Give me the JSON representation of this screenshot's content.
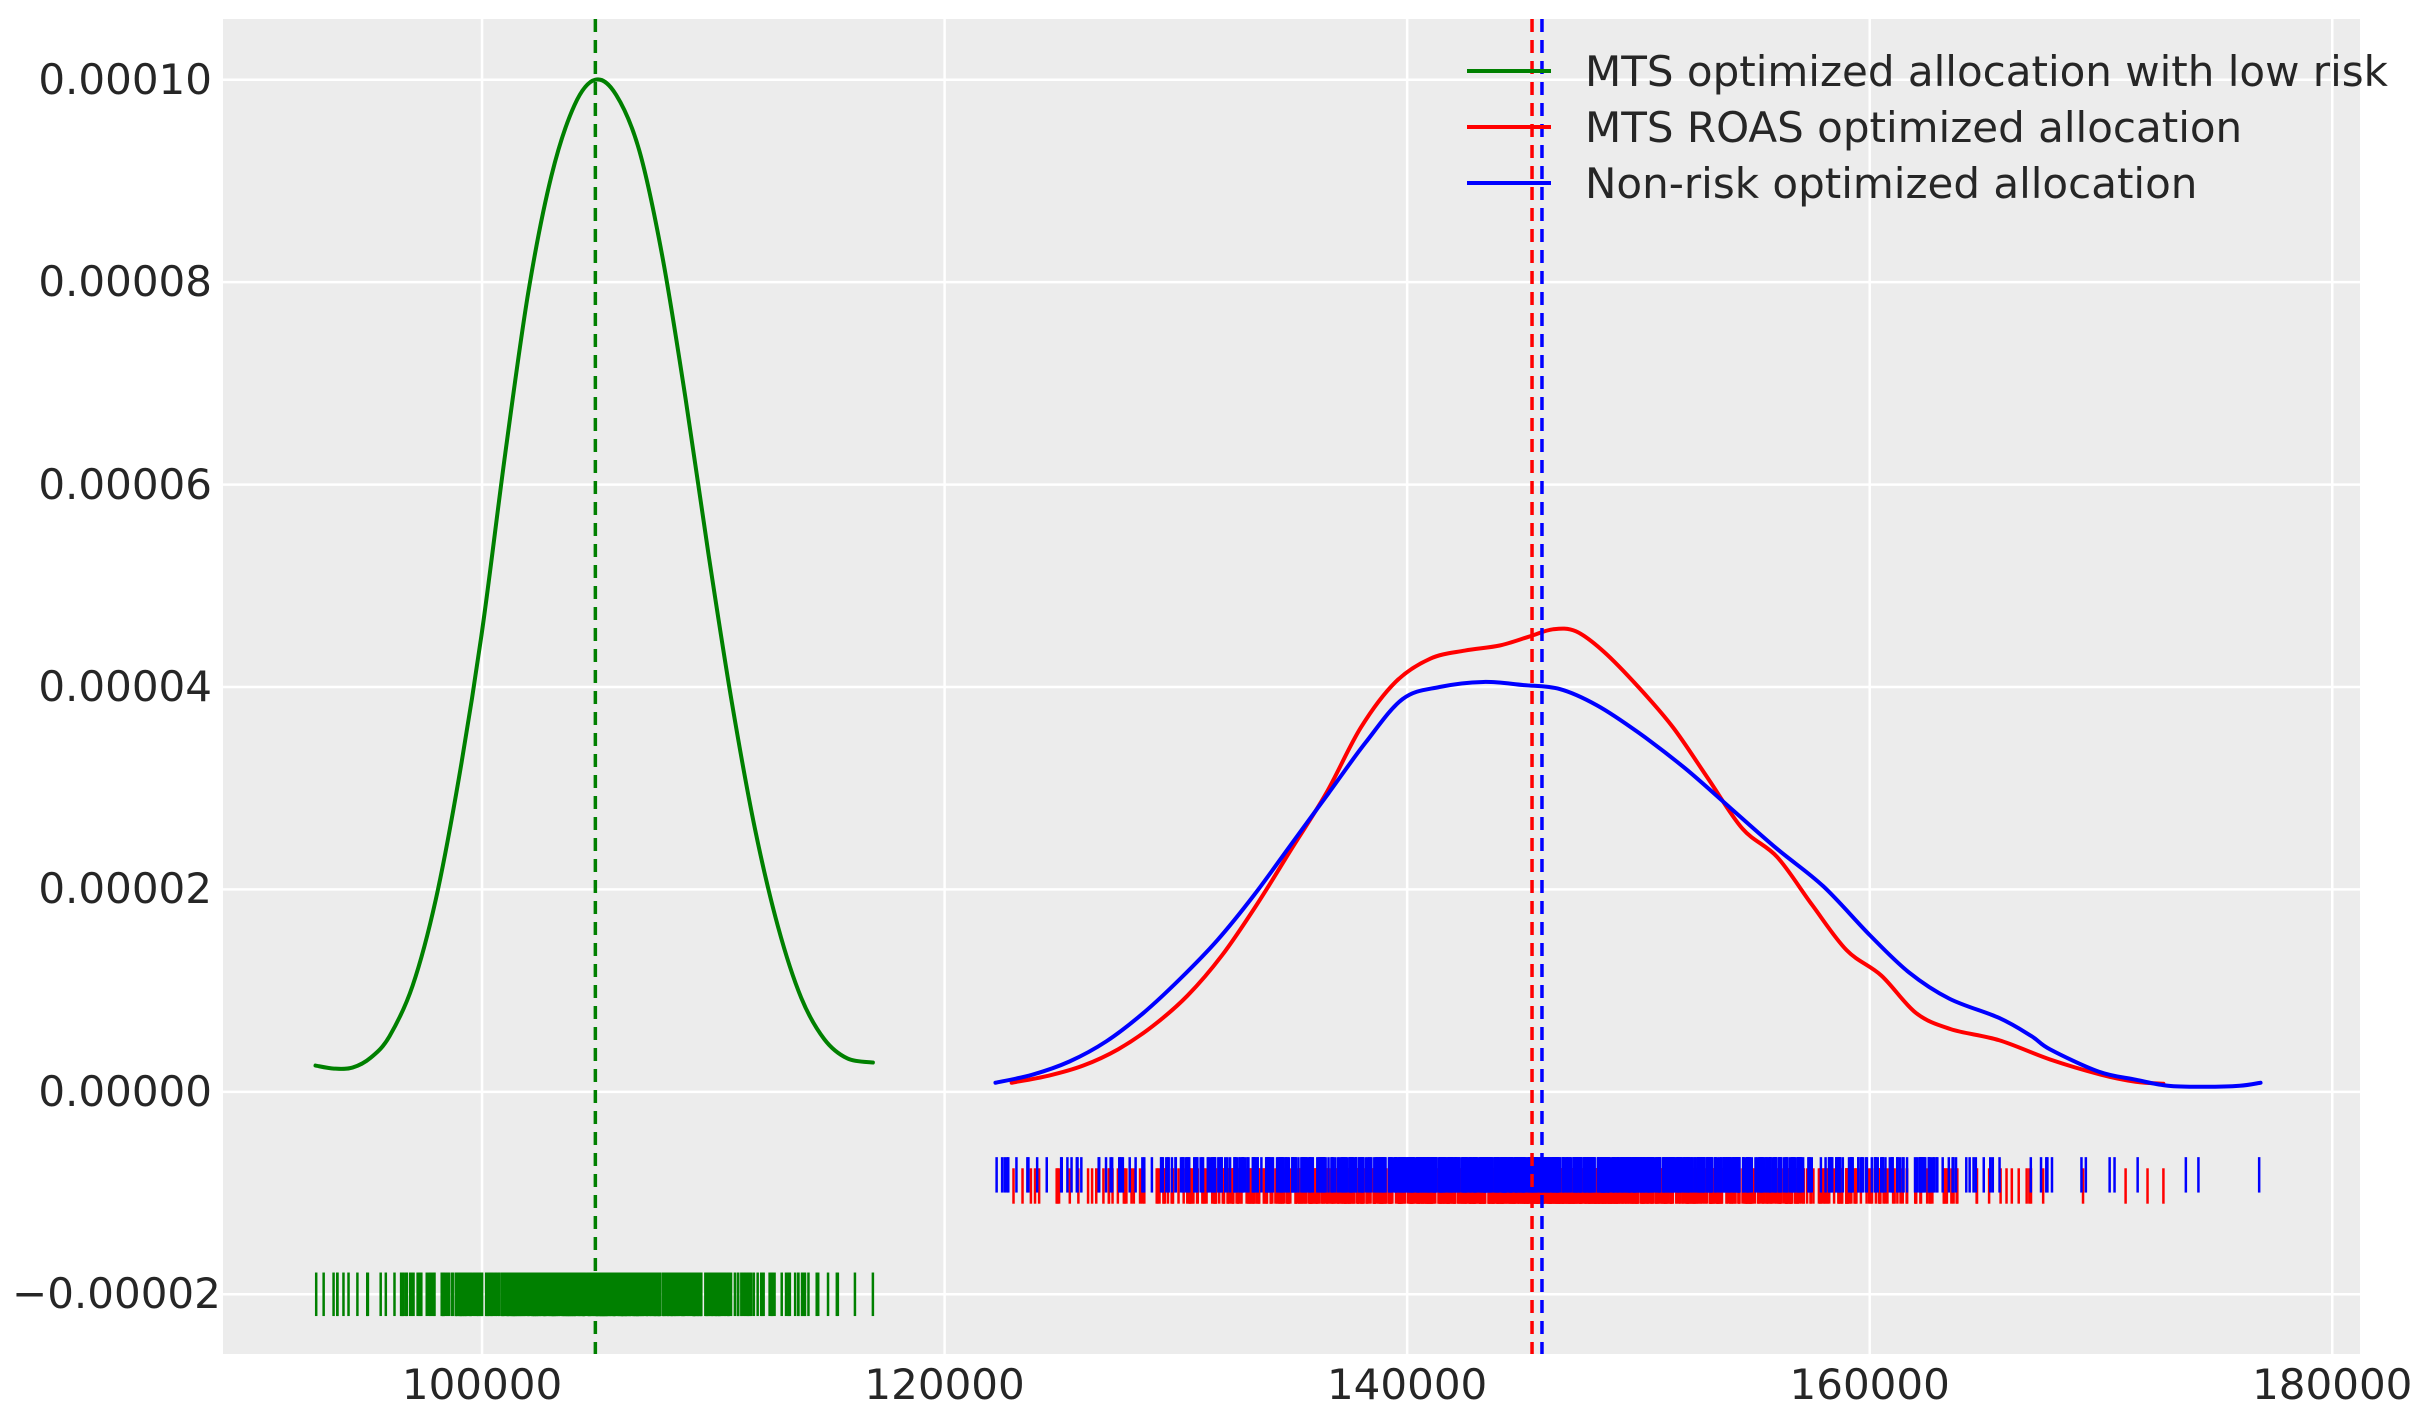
{
  "figure": {
    "background": "#ffffff",
    "plot_background": "#ececec",
    "grid_color": "#ffffff",
    "text_color": "#262626"
  },
  "chart_data": {
    "type": "line",
    "subtype": "kde-distribution-with-rug",
    "title": "",
    "xlabel": "",
    "ylabel": "",
    "axes": {
      "xlim": [
        88800,
        181200
      ],
      "ylim": [
        -2.59e-05,
        0.000106
      ],
      "x_ticks": [
        100000,
        120000,
        140000,
        160000,
        180000
      ],
      "x_tick_labels": [
        "100000",
        "120000",
        "140000",
        "160000",
        "180000"
      ],
      "y_ticks": [
        0.0001,
        8e-05,
        6e-05,
        4e-05,
        2e-05,
        0.0,
        -2e-05
      ],
      "y_tick_labels": [
        "0.00010",
        "0.00008",
        "0.00006",
        "0.00004",
        "0.00002",
        "0.00000",
        "−0.00002"
      ],
      "grid": true,
      "legend_position": "upper right"
    },
    "series": [
      {
        "name": "MTS optimized allocation with low risk",
        "color": "#008000",
        "mean_line": 104900,
        "line_style": "solid",
        "mean_line_style": "dashed",
        "points": [
          [
            92800,
            2.6e-06
          ],
          [
            93600,
            2.3e-06
          ],
          [
            94400,
            2.4e-06
          ],
          [
            95200,
            3.4e-06
          ],
          [
            96000,
            5.5e-06
          ],
          [
            97000,
            1.05e-05
          ],
          [
            98000,
            1.9e-05
          ],
          [
            99000,
            3.1e-05
          ],
          [
            100000,
            4.55e-05
          ],
          [
            101000,
            6.3e-05
          ],
          [
            102000,
            7.9e-05
          ],
          [
            103000,
            9.05e-05
          ],
          [
            104000,
            9.75e-05
          ],
          [
            104900,
            0.0001
          ],
          [
            105800,
            9.85e-05
          ],
          [
            106800,
            9.3e-05
          ],
          [
            107800,
            8.25e-05
          ],
          [
            108800,
            6.85e-05
          ],
          [
            109800,
            5.3e-05
          ],
          [
            110800,
            3.85e-05
          ],
          [
            111800,
            2.6e-05
          ],
          [
            112800,
            1.63e-05
          ],
          [
            113800,
            9.3e-06
          ],
          [
            114800,
            5.2e-06
          ],
          [
            115800,
            3.3e-06
          ],
          [
            116900,
            2.9e-06
          ]
        ]
      },
      {
        "name": "MTS ROAS optimized allocation",
        "color": "#ff0000",
        "mean_line": 145400,
        "line_style": "solid",
        "mean_line_style": "dashed",
        "points": [
          [
            122900,
            9e-07
          ],
          [
            124500,
            1.6e-06
          ],
          [
            126000,
            2.6e-06
          ],
          [
            127500,
            4.2e-06
          ],
          [
            129000,
            6.5e-06
          ],
          [
            130500,
            9.5e-06
          ],
          [
            132000,
            1.35e-05
          ],
          [
            133500,
            1.85e-05
          ],
          [
            135000,
            2.4e-05
          ],
          [
            136500,
            2.95e-05
          ],
          [
            138000,
            3.6e-05
          ],
          [
            139500,
            4.05e-05
          ],
          [
            141000,
            4.28e-05
          ],
          [
            142500,
            4.36e-05
          ],
          [
            144000,
            4.41e-05
          ],
          [
            145300,
            4.5e-05
          ],
          [
            146300,
            4.57e-05
          ],
          [
            147300,
            4.55e-05
          ],
          [
            148500,
            4.35e-05
          ],
          [
            150000,
            4e-05
          ],
          [
            151500,
            3.6e-05
          ],
          [
            153000,
            3.1e-05
          ],
          [
            154500,
            2.6e-05
          ],
          [
            156000,
            2.32e-05
          ],
          [
            157500,
            1.85e-05
          ],
          [
            159000,
            1.4e-05
          ],
          [
            160500,
            1.15e-05
          ],
          [
            162000,
            7.8e-06
          ],
          [
            163500,
            6.2e-06
          ],
          [
            165600,
            5.1e-06
          ],
          [
            167800,
            3.2e-06
          ],
          [
            170000,
            1.7e-06
          ],
          [
            171500,
            1e-06
          ],
          [
            172700,
            8e-07
          ]
        ]
      },
      {
        "name": "Non-risk optimized allocation",
        "color": "#0000ff",
        "mean_line": 145830,
        "line_style": "solid",
        "mean_line_style": "dashed",
        "points": [
          [
            122200,
            9e-07
          ],
          [
            123800,
            1.7e-06
          ],
          [
            125400,
            3e-06
          ],
          [
            127000,
            5e-06
          ],
          [
            128600,
            7.8e-06
          ],
          [
            130200,
            1.12e-05
          ],
          [
            131800,
            1.5e-05
          ],
          [
            133400,
            1.95e-05
          ],
          [
            135000,
            2.45e-05
          ],
          [
            136600,
            2.95e-05
          ],
          [
            138200,
            3.45e-05
          ],
          [
            139800,
            3.88e-05
          ],
          [
            141400,
            4e-05
          ],
          [
            143300,
            4.05e-05
          ],
          [
            145000,
            4.02e-05
          ],
          [
            146600,
            3.98e-05
          ],
          [
            148200,
            3.82e-05
          ],
          [
            150000,
            3.55e-05
          ],
          [
            152000,
            3.2e-05
          ],
          [
            154000,
            2.8e-05
          ],
          [
            156000,
            2.4e-05
          ],
          [
            158000,
            2.03e-05
          ],
          [
            160000,
            1.55e-05
          ],
          [
            161700,
            1.18e-05
          ],
          [
            163450,
            9.2e-06
          ],
          [
            165600,
            7.3e-06
          ],
          [
            167000,
            5.5e-06
          ],
          [
            167800,
            4.2e-06
          ],
          [
            169900,
            2e-06
          ],
          [
            171500,
            1.2e-06
          ],
          [
            172900,
            6e-07
          ],
          [
            174500,
            5e-07
          ],
          [
            176000,
            6e-07
          ],
          [
            176900,
            9e-07
          ]
        ]
      }
    ],
    "rugs": [
      {
        "series": "MTS optimized allocation with low risk",
        "color": "#008000",
        "center_y": -2e-05,
        "tick_half_height": 2.15e-06,
        "n": 700,
        "mean": 104900,
        "std": 4100,
        "min": 92830,
        "max": 116900
      },
      {
        "series": "MTS ROAS optimized allocation",
        "color": "#ff0000",
        "center_y": -9.3e-06,
        "tick_half_height": 1.75e-06,
        "n": 1000,
        "mean": 145400,
        "std": 8800,
        "min": 122980,
        "max": 172700
      },
      {
        "series": "Non-risk optimized allocation",
        "color": "#0000ff",
        "center_y": -8.2e-06,
        "tick_half_height": 1.75e-06,
        "n": 1000,
        "mean": 145830,
        "std": 9300,
        "min": 122250,
        "max": 176840
      }
    ],
    "legend": [
      {
        "label": "MTS optimized allocation with low risk",
        "color": "#008000"
      },
      {
        "label": "MTS ROAS optimized allocation",
        "color": "#ff0000"
      },
      {
        "label": "Non-risk optimized allocation",
        "color": "#0000ff"
      }
    ]
  }
}
